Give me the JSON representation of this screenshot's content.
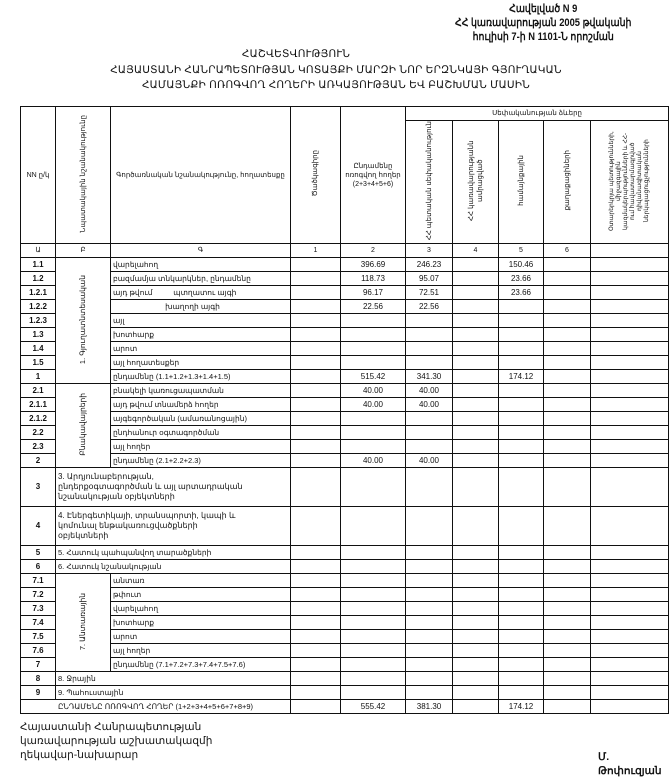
{
  "appendix": {
    "line1": "Հավելված N 9",
    "line2": "ՀՀ կառավարության 2005 թվականի",
    "line3": "հուլիսի 7-ի N 1101-Ն որոշման"
  },
  "title": {
    "line1": "ՀԱՇՎԵՏՎՈՒԹՅՈՒՆ",
    "line2": "ՀԱՅԱՍՏԱՆԻ ՀԱՆՐԱՊԵՏՈՒԹՅԱՆ ԿՈՏԱՅՔԻ ՄԱՐԶԻ ՆՈՐ ԵՐԶՆԿԱՅԻ ԳՅՈՒՂԱԿԱՆ",
    "line3": "ՀԱՄԱՅՆՔԻ ՈՌՈԳՎՈՂ ՀՈՂԵՐԻ ԱՌԿԱՅՈՒԹՅԱՆ ԵՎ ԲԱՇԽՄԱՆ ՄԱՍԻՆ"
  },
  "table": {
    "headers": {
      "num": "NN ը/կ",
      "purpose": "Նպատակային նշանակությունը",
      "function": "Գործառնական նշանակությունը, հողատեսքը",
      "code": "Ծածկագիրը",
      "total": "Ընդամենը ոռոգվող հողեր (2+3+4+5+6)",
      "ownership": "Սեփականության ձևերը",
      "col2": "ՀՀ պետական սեփականություն",
      "col3": "ՀՀ կառավարությանն ամրացված",
      "col4": "համայնքային",
      "col5": "քաղաքացիների",
      "col6": "Օտարերկրյա պետությունների, միջազգային կազմակերպությունների և ՀՀ-ում հավատարմագրված դիվանագիտական ներկայացուցչությունների"
    },
    "letters": [
      "Ա",
      "Բ",
      "Գ",
      "1",
      "2",
      "3",
      "4",
      "5",
      "6"
    ],
    "sections": [
      {
        "group": "1. Գյուղատնտեսական",
        "rows": [
          {
            "num": "1.1",
            "label": "վարելահող",
            "values": [
              "396.69",
              "246.23",
              "",
              "150.46",
              "",
              ""
            ]
          },
          {
            "num": "1.2",
            "label": "բազմամյա տնկարկներ, ընդամենը",
            "values": [
              "118.73",
              "95.07",
              "",
              "23.66",
              "",
              ""
            ]
          },
          {
            "num": "1.2.1",
            "label": "այդ թվում          պտղատու այգի",
            "values": [
              "96.17",
              "72.51",
              "",
              "23.66",
              "",
              ""
            ]
          },
          {
            "num": "1.2.2",
            "label": "                         խաղողի այգի",
            "values": [
              "22.56",
              "22.56",
              "",
              "",
              "",
              ""
            ]
          },
          {
            "num": "1.2.3",
            "label": "այլ",
            "values": [
              "",
              "",
              "",
              "",
              "",
              ""
            ]
          },
          {
            "num": "1.3",
            "label": "խոտհարք",
            "values": [
              "",
              "",
              "",
              "",
              "",
              ""
            ]
          },
          {
            "num": "1.4",
            "label": "արոտ",
            "values": [
              "",
              "",
              "",
              "",
              "",
              ""
            ]
          },
          {
            "num": "1.5",
            "label": "այլ հողատեսքեր",
            "values": [
              "",
              "",
              "",
              "",
              "",
              ""
            ]
          },
          {
            "num": "1",
            "label": "ընդամենը (1.1+1.2+1.3+1.4+1.5)",
            "values": [
              "515.42",
              "341.30",
              "",
              "174.12",
              "",
              ""
            ]
          }
        ]
      },
      {
        "group": "Բնակավայրերի",
        "rows": [
          {
            "num": "2.1",
            "label": "բնակելի կառուցապատման",
            "values": [
              "40.00",
              "40.00",
              "",
              "",
              "",
              ""
            ]
          },
          {
            "num": "2.1.1",
            "label": "այդ թվում տնամերձ հողեր",
            "values": [
              "40.00",
              "40.00",
              "",
              "",
              "",
              ""
            ]
          },
          {
            "num": "2.1.2",
            "label": "այգեգործական (ամառանոցային)",
            "values": [
              "",
              "",
              "",
              "",
              "",
              ""
            ]
          },
          {
            "num": "2.2",
            "label": "ընդհանուր օգտագործման",
            "values": [
              "",
              "",
              "",
              "",
              "",
              ""
            ]
          },
          {
            "num": "2.3",
            "label": "այլ հողեր",
            "values": [
              "",
              "",
              "",
              "",
              "",
              ""
            ]
          },
          {
            "num": "2",
            "label": "ընդամենը (2.1+2.2+2.3)",
            "values": [
              "40.00",
              "40.00",
              "",
              "",
              "",
              ""
            ]
          }
        ]
      },
      {
        "num": "3",
        "label": "3. Արդյունաբերության, ընդերքօգտագործման և այլ արտադրական նշանակության օբյեկտների",
        "values": [
          "",
          "",
          "",
          "",
          "",
          ""
        ]
      },
      {
        "num": "4",
        "label": "4. Էներգետիկայի, տրանսպորտի, կապի և կոմունալ ենթակառուցվածքների օբյեկտների",
        "values": [
          "",
          "",
          "",
          "",
          "",
          ""
        ]
      },
      {
        "num": "5",
        "label": "5. Հատուկ պահպանվող տարածքների",
        "values": [
          "",
          "",
          "",
          "",
          "",
          ""
        ]
      },
      {
        "num": "6",
        "label": "6. Հատուկ նշանակության",
        "values": [
          "",
          "",
          "",
          "",
          "",
          ""
        ]
      },
      {
        "group": "7. Անտառային",
        "rows": [
          {
            "num": "7.1",
            "label": "անտառ",
            "values": [
              "",
              "",
              "",
              "",
              "",
              ""
            ]
          },
          {
            "num": "7.2",
            "label": "թփուտ",
            "values": [
              "",
              "",
              "",
              "",
              "",
              ""
            ]
          },
          {
            "num": "7.3",
            "label": "վարելահող",
            "values": [
              "",
              "",
              "",
              "",
              "",
              ""
            ]
          },
          {
            "num": "7.4",
            "label": "խոտհարք",
            "values": [
              "",
              "",
              "",
              "",
              "",
              ""
            ]
          },
          {
            "num": "7.5",
            "label": "արոտ",
            "values": [
              "",
              "",
              "",
              "",
              "",
              ""
            ]
          },
          {
            "num": "7.6",
            "label": "այլ հողեր",
            "values": [
              "",
              "",
              "",
              "",
              "",
              ""
            ]
          },
          {
            "num": "7",
            "label": "ընդամենը (7.1+7.2+7.3+7.4+7.5+7.6)",
            "values": [
              "",
              "",
              "",
              "",
              "",
              ""
            ]
          }
        ]
      },
      {
        "num": "8",
        "label": "8. Ջրային",
        "values": [
          "",
          "",
          "",
          "",
          "",
          ""
        ]
      },
      {
        "num": "9",
        "label": "9. Պահուստային",
        "values": [
          "",
          "",
          "",
          "",
          "",
          ""
        ]
      }
    ],
    "grand_total": {
      "label": "ԸՆԴԱՄԵՆԸ ՈՌՈԳՎՈՂ ՀՈՂԵՐ (1+2+3+4+5+6+7+8+9)",
      "values": [
        "555.42",
        "381.30",
        "",
        "174.12",
        "",
        ""
      ]
    }
  },
  "footer": {
    "line1": "Հայաստանի Հանրապետության",
    "line2": "կառավարության աշխատակազմի",
    "line3": "ղեկավար-նախարար",
    "signature": "Մ. Թոփուզյան"
  }
}
